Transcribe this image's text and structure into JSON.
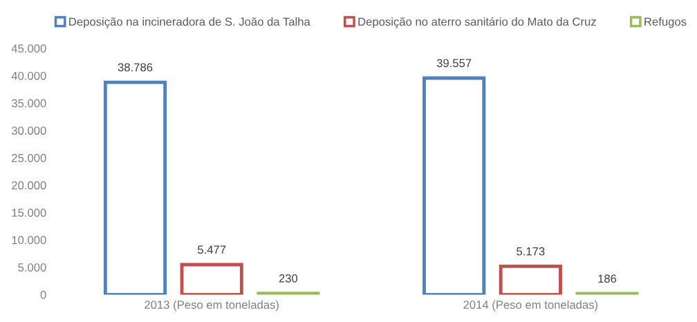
{
  "chart_data": {
    "type": "bar",
    "categories": [
      "2013 (Peso em toneladas)",
      "2014 (Peso em toneladas)"
    ],
    "series": [
      {
        "name": "Deposição na incineradora de S. João da Talha",
        "color": "#4f81bd",
        "values": [
          38786,
          39557
        ],
        "value_labels": [
          "38.786",
          "39.557"
        ]
      },
      {
        "name": "Deposição no aterro sanitário do Mato da Cruz",
        "color": "#c0504d",
        "values": [
          5477,
          5173
        ],
        "value_labels": [
          "5.477",
          "5.173"
        ]
      },
      {
        "name": "Refugos",
        "color": "#9bbb59",
        "values": [
          230,
          186
        ],
        "value_labels": [
          "230",
          "186"
        ]
      }
    ],
    "ylim": [
      0,
      45000
    ],
    "yticks": [
      0,
      {
        "value": 5000,
        "label": "5.000"
      },
      {
        "value": 10000,
        "label": "10.000"
      },
      {
        "value": 15000,
        "label": "15.000"
      },
      {
        "value": 20000,
        "label": "20.000"
      },
      {
        "value": 25000,
        "label": "25.000"
      },
      {
        "value": 30000,
        "label": "30.000"
      },
      {
        "value": 35000,
        "label": "35.000"
      },
      {
        "value": 40000,
        "label": "40.000"
      },
      {
        "value": 45000,
        "label": "45.000"
      }
    ],
    "grid": false,
    "legend": "top"
  }
}
